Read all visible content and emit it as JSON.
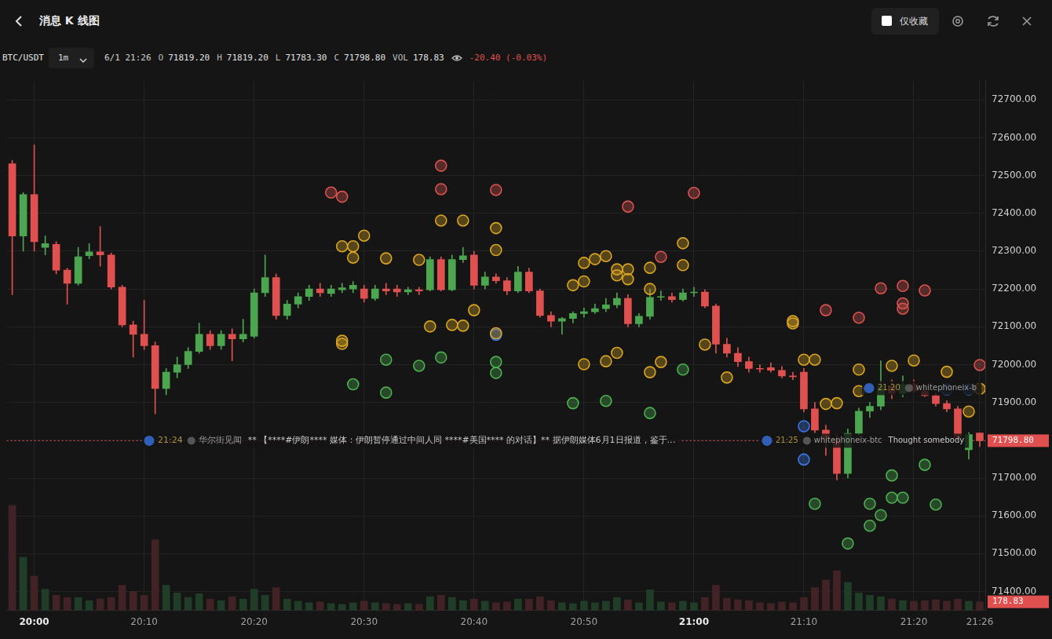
{
  "header": {
    "title": "消息 K 线图",
    "favorites_only": "仅收藏",
    "symbol": "BTC/USDT",
    "interval": "1m",
    "time": "6/1 21:26",
    "fields": [
      {
        "label": "O",
        "value": "71819.20"
      },
      {
        "label": "H",
        "value": "71819.20"
      },
      {
        "label": "L",
        "value": "71783.30"
      },
      {
        "label": "C",
        "value": "71798.80"
      },
      {
        "label": "VOL",
        "value": "178.83"
      }
    ],
    "change": "-20.40 (-0.03%)"
  },
  "chart_data": {
    "type": "candlestick",
    "categories": [
      null,
      null,
      "20:00",
      null,
      null,
      null,
      null,
      null,
      null,
      null,
      null,
      null,
      "20:10",
      null,
      null,
      null,
      null,
      null,
      null,
      null,
      null,
      null,
      "20:20",
      null,
      null,
      null,
      null,
      null,
      null,
      null,
      null,
      null,
      "20:30",
      null,
      null,
      null,
      null,
      null,
      null,
      null,
      null,
      null,
      "20:40",
      null,
      null,
      null,
      null,
      null,
      null,
      null,
      null,
      null,
      "20:50",
      null,
      null,
      null,
      null,
      null,
      null,
      null,
      null,
      null,
      "21:00",
      null,
      null,
      null,
      null,
      null,
      null,
      null,
      null,
      null,
      "21:10",
      null,
      null,
      null,
      null,
      null,
      null,
      null,
      null,
      null,
      "21:20",
      null,
      null,
      null,
      null,
      null,
      "21:26"
    ],
    "series": [
      {
        "type": "candlestick",
        "open": [
          72531,
          72340,
          72450,
          72310,
          72318,
          72250,
          72215,
          72288,
          72298,
          72290,
          72205,
          72105,
          72080,
          72050,
          71937,
          71980,
          72000,
          72035,
          72080,
          72050,
          72080,
          72068,
          72075,
          72190,
          72230,
          72130,
          72160,
          72180,
          72200,
          72188,
          72198,
          72200,
          72200,
          72175,
          72200,
          72200,
          72192,
          72198,
          72198,
          72278,
          72198,
          72278,
          72290,
          72210,
          72232,
          72222,
          72195,
          72245,
          72195,
          72130,
          72115,
          72122,
          72135,
          72140,
          72148,
          72158,
          72175,
          72108,
          72128,
          72178,
          72180,
          72172,
          72190,
          72192,
          72155,
          72054,
          72030,
          72008,
          71990,
          71992,
          71985,
          71970,
          71980,
          71883,
          71827,
          71803,
          71712,
          71818,
          71877,
          71890,
          71943,
          71924,
          71948,
          71930,
          71918,
          71897,
          71883,
          71775,
          71819.2
        ],
        "high": [
          72540,
          72455,
          72581,
          72340,
          72325,
          72255,
          72310,
          72320,
          72365,
          72295,
          72210,
          72115,
          72170,
          72060,
          71990,
          72020,
          72045,
          72110,
          72090,
          72090,
          72095,
          72120,
          72200,
          72290,
          72240,
          72170,
          72190,
          72210,
          72215,
          72210,
          72215,
          72220,
          72210,
          72210,
          72215,
          72210,
          72205,
          72205,
          72285,
          72285,
          72290,
          72310,
          72300,
          72245,
          72240,
          72230,
          72260,
          72255,
          72200,
          72140,
          72125,
          72140,
          72150,
          72160,
          72175,
          72190,
          72185,
          72135,
          72200,
          72195,
          72190,
          72200,
          72205,
          72198,
          72160,
          72070,
          72045,
          72020,
          72000,
          72005,
          71995,
          71980,
          71990,
          71900,
          71840,
          71815,
          71830,
          71885,
          71900,
          72010,
          71960,
          71970,
          71960,
          71945,
          71925,
          71905,
          71890,
          71820,
          71819.2
        ],
        "low": [
          72185,
          72300,
          72300,
          72290,
          72240,
          72160,
          72210,
          72280,
          72260,
          72200,
          72100,
          72020,
          72040,
          71870,
          71920,
          71965,
          71990,
          72030,
          72040,
          72040,
          72010,
          72060,
          72070,
          72180,
          72120,
          72120,
          72150,
          72170,
          72180,
          72180,
          72190,
          72190,
          72165,
          72170,
          72185,
          72180,
          72185,
          72185,
          72195,
          72195,
          72195,
          72270,
          72200,
          72200,
          72215,
          72185,
          72190,
          72190,
          72125,
          72100,
          72080,
          72110,
          72125,
          72135,
          72140,
          72150,
          72100,
          72100,
          72120,
          72170,
          72165,
          72168,
          72180,
          72150,
          72030,
          72020,
          71995,
          71980,
          71980,
          71980,
          71965,
          71960,
          71875,
          71820,
          71760,
          71695,
          71700,
          71810,
          71860,
          71880,
          71910,
          71915,
          71925,
          71915,
          71890,
          71875,
          71800,
          71750,
          71783.3
        ],
        "close": [
          72340,
          72450,
          72325,
          72320,
          72250,
          72215,
          72285,
          72298,
          72290,
          72205,
          72105,
          72080,
          72050,
          71937,
          71980,
          72000,
          72035,
          72080,
          72050,
          72080,
          72068,
          72080,
          72190,
          72230,
          72130,
          72160,
          72180,
          72200,
          72190,
          72200,
          72203,
          72210,
          72175,
          72200,
          72195,
          72192,
          72198,
          72195,
          72278,
          72198,
          72278,
          72288,
          72210,
          72232,
          72222,
          72195,
          72245,
          72195,
          72130,
          72115,
          72122,
          72135,
          72140,
          72148,
          72158,
          72175,
          72108,
          72128,
          72178,
          72180,
          72172,
          72190,
          72192,
          72155,
          72054,
          72030,
          72008,
          71990,
          71988,
          71985,
          71970,
          71968,
          71883,
          71827,
          71803,
          71712,
          71818,
          71877,
          71890,
          71943,
          71924,
          71948,
          71930,
          71918,
          71897,
          71883,
          71808,
          71815,
          71798.8
        ]
      },
      {
        "type": "bar",
        "axis": "y2",
        "values": [
          2180,
          1106,
          711,
          442,
          316,
          269,
          269,
          205,
          237,
          269,
          521,
          395,
          316,
          1469,
          521,
          363,
          269,
          348,
          237,
          205,
          284,
          237,
          442,
          316,
          474,
          237,
          190,
          158,
          174,
          142,
          126,
          158,
          190,
          158,
          142,
          126,
          142,
          126,
          284,
          316,
          269,
          205,
          237,
          190,
          158,
          174,
          237,
          237,
          284,
          205,
          158,
          142,
          190,
          158,
          190,
          269,
          221,
          158,
          427,
          174,
          158,
          190,
          158,
          269,
          521,
          253,
          221,
          205,
          158,
          142,
          174,
          158,
          269,
          474,
          632,
          822,
          585,
          363,
          316,
          284,
          237,
          205,
          190,
          205,
          221,
          190,
          237,
          190,
          178.83
        ]
      }
    ],
    "ylim": [
      71350,
      72750
    ],
    "yticks": [
      {
        "value": 71400,
        "label": "71400.00"
      },
      {
        "value": 71500,
        "label": "71500.00"
      },
      {
        "value": 71600,
        "label": "71600.00"
      },
      {
        "value": 71700,
        "label": "71700.00"
      },
      {
        "value": 71800,
        "label": "71800.00"
      },
      {
        "value": 71900,
        "label": "71900.00"
      },
      {
        "value": 72000,
        "label": "72000.00"
      },
      {
        "value": 72100,
        "label": "72100.00"
      },
      {
        "value": 72200,
        "label": "72200.00"
      },
      {
        "value": 72300,
        "label": "72300.00"
      },
      {
        "value": 72400,
        "label": "72400.00"
      },
      {
        "value": 72500,
        "label": "72500.00"
      },
      {
        "value": 72600,
        "label": "72600.00"
      },
      {
        "value": 72700,
        "label": "72700.00"
      }
    ],
    "y2lim": [
      0,
      11000
    ],
    "grid": true,
    "last_price": {
      "value": 71798.8,
      "label": "71798.80"
    },
    "last_volume": {
      "value": 178.83,
      "label": "178.83"
    },
    "markers": [
      {
        "color": "#d9534f",
        "x": [
          29,
          30,
          39,
          39,
          44,
          56,
          62,
          74,
          77,
          79,
          81,
          81,
          81,
          83,
          88,
          59
        ],
        "y": [
          72455,
          72444,
          72526,
          72464,
          72462,
          72418,
          72454,
          72144,
          72124,
          72202,
          72208,
          72148,
          72162,
          72196,
          71999,
          72285
        ]
      },
      {
        "color": "#d9a520",
        "x": [
          30,
          31,
          32,
          31,
          34,
          37,
          39,
          41,
          44,
          44,
          42,
          38,
          40,
          41,
          44,
          30,
          30,
          52,
          53,
          54,
          55,
          55,
          56,
          58,
          61,
          61,
          58,
          56,
          51,
          52,
          71,
          71,
          63,
          65,
          55,
          52,
          54,
          58,
          59,
          72,
          73,
          74,
          75,
          77,
          80,
          82,
          85,
          87,
          88,
          77
        ],
        "y": [
          72313,
          72313,
          72341,
          72283,
          72281,
          72277,
          72381,
          72381,
          72361,
          72303,
          72144,
          72101,
          72105,
          72103,
          72083,
          72055,
          72063,
          72269,
          72279,
          72287,
          72236,
          72252,
          72252,
          72256,
          72321,
          72263,
          72200,
          72226,
          72210,
          72220,
          72109,
          72115,
          72053,
          71966,
          72031,
          72001,
          72009,
          71980,
          72007,
          72013,
          72013,
          71896,
          71898,
          71987,
          71997,
          72011,
          71981,
          71876,
          71936,
          71930
        ]
      },
      {
        "color": "#4caf50",
        "x": [
          31,
          34,
          37,
          39,
          34,
          44,
          44,
          51,
          54,
          58,
          61,
          73,
          80,
          83,
          78,
          80,
          81,
          79,
          78,
          76,
          84
        ],
        "y": [
          71948,
          72013,
          71997,
          72019,
          71926,
          72007,
          71978,
          71898,
          71904,
          71872,
          71987,
          71632,
          71707,
          71735,
          71632,
          71648,
          71648,
          71602,
          71574,
          71527,
          71630
        ]
      },
      {
        "color": "#3b78e7",
        "x": [
          44,
          72,
          72,
          85,
          87
        ],
        "y": [
          72079,
          71837,
          71749,
          71934,
          71934
        ]
      }
    ],
    "annotations": [
      {
        "time": "21:24",
        "source": "华尔街见闻",
        "text": "** 【****#伊朗**** 媒体：伊朗暂停通过中间人同 ****#美国**** 的对话】** 据伊朗媒体6月1日报道，鉴于…"
      },
      {
        "time": "21:25",
        "source": "whitephoneix-btc",
        "text": "Thought somebody"
      },
      {
        "time": "21:20",
        "source": "whitephoneix-b"
      }
    ]
  }
}
